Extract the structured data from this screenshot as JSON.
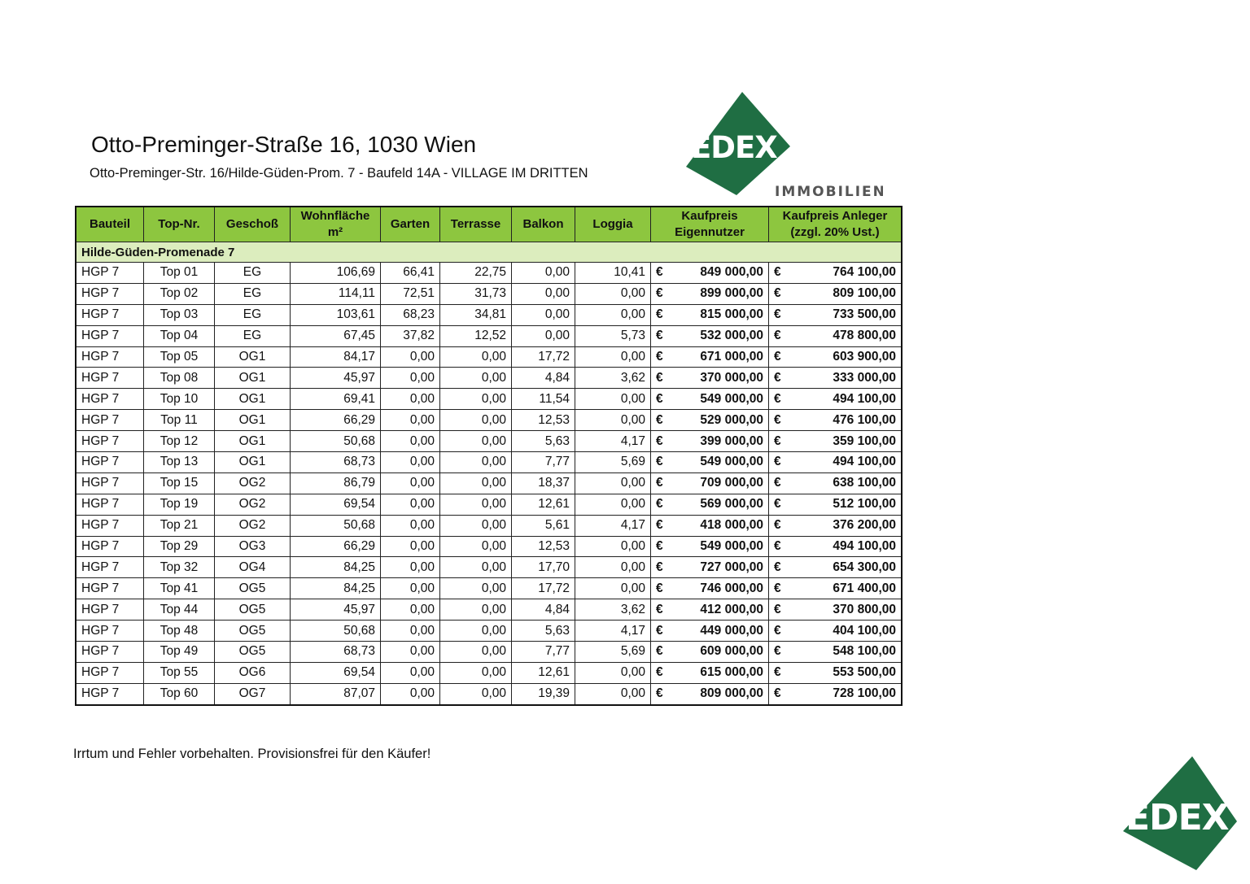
{
  "header": {
    "title": "Otto-Preminger-Straße 16, 1030 Wien",
    "subtitle": "Otto-Preminger-Str. 16/Hilde-Güden-Prom. 7 - Baufeld 14A - VILLAGE IM DRITTEN"
  },
  "logo": {
    "brand": "EDEX",
    "tagline": "IMMOBILIEN",
    "color": "#1f6e43"
  },
  "table": {
    "columns": [
      "Bauteil",
      "Top-Nr.",
      "Geschoß",
      "Wohnfläche m²",
      "Garten",
      "Terrasse",
      "Balkon",
      "Loggia",
      "Kaufpreis Eigennutzer",
      "Kaufpreis Anleger (zzgl. 20% Ust.)"
    ],
    "section": "Hilde-Güden-Promenade 7",
    "currency": "€",
    "rows": [
      [
        "HGP 7",
        "Top 01",
        "EG",
        "106,69",
        "66,41",
        "22,75",
        "0,00",
        "10,41",
        "849 000,00",
        "764 100,00"
      ],
      [
        "HGP 7",
        "Top 02",
        "EG",
        "114,11",
        "72,51",
        "31,73",
        "0,00",
        "0,00",
        "899 000,00",
        "809 100,00"
      ],
      [
        "HGP 7",
        "Top 03",
        "EG",
        "103,61",
        "68,23",
        "34,81",
        "0,00",
        "0,00",
        "815 000,00",
        "733 500,00"
      ],
      [
        "HGP 7",
        "Top 04",
        "EG",
        "67,45",
        "37,82",
        "12,52",
        "0,00",
        "5,73",
        "532 000,00",
        "478 800,00"
      ],
      [
        "HGP 7",
        "Top 05",
        "OG1",
        "84,17",
        "0,00",
        "0,00",
        "17,72",
        "0,00",
        "671 000,00",
        "603 900,00"
      ],
      [
        "HGP 7",
        "Top 08",
        "OG1",
        "45,97",
        "0,00",
        "0,00",
        "4,84",
        "3,62",
        "370 000,00",
        "333 000,00"
      ],
      [
        "HGP 7",
        "Top 10",
        "OG1",
        "69,41",
        "0,00",
        "0,00",
        "11,54",
        "0,00",
        "549 000,00",
        "494 100,00"
      ],
      [
        "HGP 7",
        "Top 11",
        "OG1",
        "66,29",
        "0,00",
        "0,00",
        "12,53",
        "0,00",
        "529 000,00",
        "476 100,00"
      ],
      [
        "HGP 7",
        "Top 12",
        "OG1",
        "50,68",
        "0,00",
        "0,00",
        "5,63",
        "4,17",
        "399 000,00",
        "359 100,00"
      ],
      [
        "HGP 7",
        "Top 13",
        "OG1",
        "68,73",
        "0,00",
        "0,00",
        "7,77",
        "5,69",
        "549 000,00",
        "494 100,00"
      ],
      [
        "HGP 7",
        "Top 15",
        "OG2",
        "86,79",
        "0,00",
        "0,00",
        "18,37",
        "0,00",
        "709 000,00",
        "638 100,00"
      ],
      [
        "HGP 7",
        "Top 19",
        "OG2",
        "69,54",
        "0,00",
        "0,00",
        "12,61",
        "0,00",
        "569 000,00",
        "512 100,00"
      ],
      [
        "HGP 7",
        "Top 21",
        "OG2",
        "50,68",
        "0,00",
        "0,00",
        "5,61",
        "4,17",
        "418 000,00",
        "376 200,00"
      ],
      [
        "HGP 7",
        "Top 29",
        "OG3",
        "66,29",
        "0,00",
        "0,00",
        "12,53",
        "0,00",
        "549 000,00",
        "494 100,00"
      ],
      [
        "HGP 7",
        "Top 32",
        "OG4",
        "84,25",
        "0,00",
        "0,00",
        "17,70",
        "0,00",
        "727 000,00",
        "654 300,00"
      ],
      [
        "HGP 7",
        "Top 41",
        "OG5",
        "84,25",
        "0,00",
        "0,00",
        "17,72",
        "0,00",
        "746 000,00",
        "671 400,00"
      ],
      [
        "HGP 7",
        "Top 44",
        "OG5",
        "45,97",
        "0,00",
        "0,00",
        "4,84",
        "3,62",
        "412 000,00",
        "370 800,00"
      ],
      [
        "HGP 7",
        "Top 48",
        "OG5",
        "50,68",
        "0,00",
        "0,00",
        "5,63",
        "4,17",
        "449 000,00",
        "404 100,00"
      ],
      [
        "HGP 7",
        "Top 49",
        "OG5",
        "68,73",
        "0,00",
        "0,00",
        "7,77",
        "5,69",
        "609 000,00",
        "548 100,00"
      ],
      [
        "HGP 7",
        "Top 55",
        "OG6",
        "69,54",
        "0,00",
        "0,00",
        "12,61",
        "0,00",
        "615 000,00",
        "553 500,00"
      ],
      [
        "HGP 7",
        "Top 60",
        "OG7",
        "87,07",
        "0,00",
        "0,00",
        "19,39",
        "0,00",
        "809 000,00",
        "728 100,00"
      ]
    ]
  },
  "footer": {
    "note": "Irrtum und Fehler vorbehalten. Provisionsfrei für den Käufer!"
  }
}
